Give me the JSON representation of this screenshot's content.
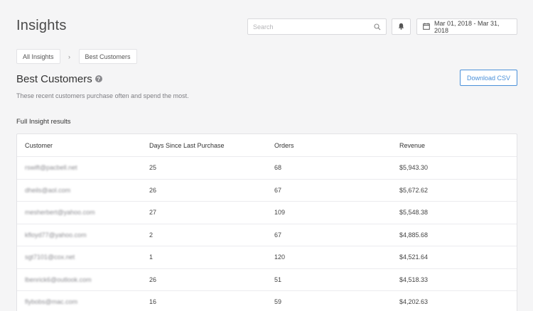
{
  "header": {
    "title": "Insights",
    "search_placeholder": "Search",
    "date_range": "Mar 01, 2018 - Mar 31, 2018"
  },
  "breadcrumb": {
    "items": [
      "All Insights",
      "Best Customers"
    ],
    "separator": "›"
  },
  "insight": {
    "title": "Best Customers",
    "help": "?",
    "description": "These recent customers purchase often and spend the most.",
    "download_label": "Download CSV",
    "results_label": "Full Insight results"
  },
  "table": {
    "columns": [
      "Customer",
      "Days Since Last Purchase",
      "Orders",
      "Revenue"
    ],
    "rows": [
      {
        "customer": "rswift@pacbell.net",
        "days": "25",
        "orders": "68",
        "revenue": "$5,943.30"
      },
      {
        "customer": "dheils@aol.com",
        "days": "26",
        "orders": "67",
        "revenue": "$5,672.62"
      },
      {
        "customer": "mesherbert@yahoo.com",
        "days": "27",
        "orders": "109",
        "revenue": "$5,548.38"
      },
      {
        "customer": "kfloyd77@yahoo.com",
        "days": "2",
        "orders": "67",
        "revenue": "$4,885.68"
      },
      {
        "customer": "sgt7101@cox.net",
        "days": "1",
        "orders": "120",
        "revenue": "$4,521.64"
      },
      {
        "customer": "lbenrick6@outlook.com",
        "days": "26",
        "orders": "51",
        "revenue": "$4,518.33"
      },
      {
        "customer": "flybobs@mac.com",
        "days": "16",
        "orders": "59",
        "revenue": "$4,202.63"
      }
    ]
  },
  "colors": {
    "background": "#f5f5f6",
    "accent": "#4a90d9"
  }
}
